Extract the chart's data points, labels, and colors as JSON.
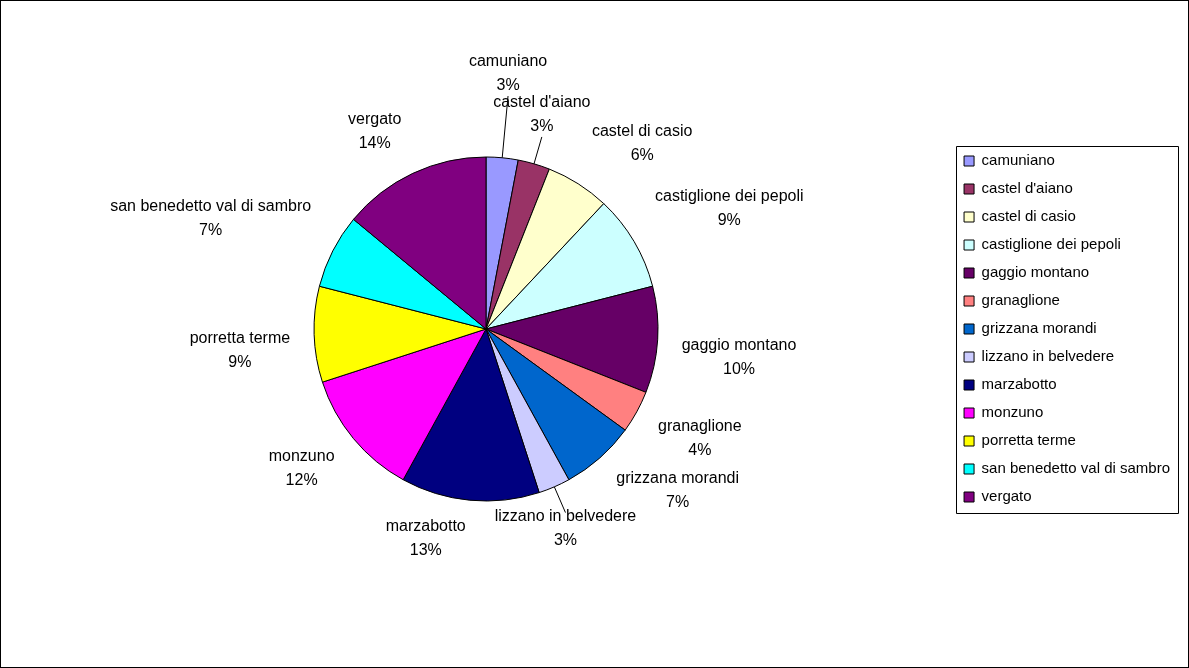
{
  "chart_data": {
    "type": "pie",
    "categories": [
      "camuniano",
      "castel d'aiano",
      "castel di casio",
      "castiglione dei pepoli",
      "gaggio montano",
      "granaglione",
      "grizzana morandi",
      "lizzano in belvedere",
      "marzabotto",
      "monzuno",
      "porretta terme",
      "san benedetto val di sambro",
      "vergato"
    ],
    "values": [
      3,
      3,
      6,
      9,
      10,
      4,
      7,
      3,
      13,
      12,
      9,
      7,
      14
    ],
    "value_labels": [
      "3%",
      "3%",
      "6%",
      "9%",
      "10%",
      "4%",
      "7%",
      "3%",
      "13%",
      "12%",
      "9%",
      "7%",
      "14%"
    ],
    "colors": [
      "#9999ff",
      "#993366",
      "#ffffcc",
      "#ccffff",
      "#660066",
      "#ff8080",
      "#0066cc",
      "#ccccff",
      "#000080",
      "#ff00ff",
      "#ffff00",
      "#00ffff",
      "#800080"
    ],
    "legend": "right"
  }
}
